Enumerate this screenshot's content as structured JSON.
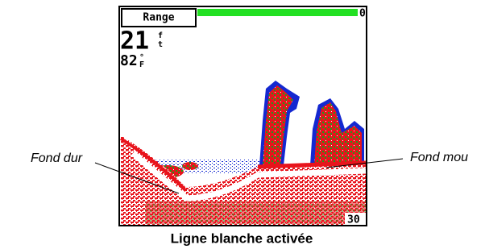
{
  "screen": {
    "range_button": "Range",
    "top_scale": 0,
    "depth": 21,
    "depth_unit_top": "f",
    "depth_unit_bottom": "t",
    "temp": 82,
    "temp_unit_top": "°",
    "temp_unit_bottom": "F",
    "bottom_scale": 30
  },
  "annotations": {
    "left": "Fond dur",
    "right": "Fond mou"
  },
  "caption": "Ligne blanche activée"
}
